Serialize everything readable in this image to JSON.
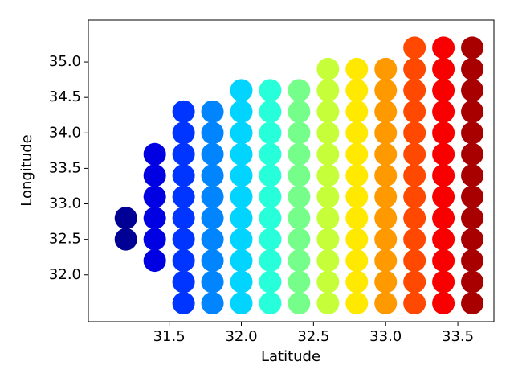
{
  "chart_data": {
    "type": "scatter",
    "x_label": "Latitude",
    "y_label": "Longitude",
    "colormap": "jet",
    "clim": [
      31.15,
      33.7
    ],
    "xlim": [
      30.94,
      33.75
    ],
    "xticks": [
      31.5,
      {
        "value": 32,
        "label": "32.0"
      },
      32.5,
      {
        "value": 33,
        "label": "33.0"
      },
      33.5
    ],
    "ylim": [
      31.34,
      35.59
    ],
    "yticks": [
      {
        "value": 32,
        "label": "32.0"
      },
      32.5,
      {
        "value": 33,
        "label": "33.0"
      },
      33.5,
      {
        "value": 34,
        "label": "34.0"
      },
      34.5,
      {
        "value": 35,
        "label": "35.0"
      }
    ],
    "x": [
      31.2,
      31.2,
      31.4,
      31.4,
      31.4,
      31.4,
      31.4,
      31.4,
      31.6,
      31.6,
      31.6,
      31.6,
      31.6,
      31.6,
      31.6,
      31.6,
      31.6,
      31.6,
      31.8,
      31.8,
      31.8,
      31.8,
      31.8,
      31.8,
      31.8,
      31.8,
      31.8,
      31.8,
      32.0,
      32.0,
      32.0,
      32.0,
      32.0,
      32.0,
      32.0,
      32.0,
      32.0,
      32.0,
      32.0,
      32.2,
      32.2,
      32.2,
      32.2,
      32.2,
      32.2,
      32.2,
      32.2,
      32.2,
      32.2,
      32.2,
      32.4,
      32.4,
      32.4,
      32.4,
      32.4,
      32.4,
      32.4,
      32.4,
      32.4,
      32.4,
      32.4,
      32.6,
      32.6,
      32.6,
      32.6,
      32.6,
      32.6,
      32.6,
      32.6,
      32.6,
      32.6,
      32.6,
      32.6,
      32.8,
      32.8,
      32.8,
      32.8,
      32.8,
      32.8,
      32.8,
      32.8,
      32.8,
      32.8,
      32.8,
      32.8,
      33.0,
      33.0,
      33.0,
      33.0,
      33.0,
      33.0,
      33.0,
      33.0,
      33.0,
      33.0,
      33.0,
      33.0,
      33.2,
      33.2,
      33.2,
      33.2,
      33.2,
      33.2,
      33.2,
      33.2,
      33.2,
      33.2,
      33.2,
      33.2,
      33.2,
      33.4,
      33.4,
      33.4,
      33.4,
      33.4,
      33.4,
      33.4,
      33.4,
      33.4,
      33.4,
      33.4,
      33.4,
      33.4,
      33.6,
      33.6,
      33.6,
      33.6,
      33.6,
      33.6,
      33.6,
      33.6,
      33.6,
      33.6,
      33.6,
      33.6,
      33.6
    ],
    "values": [
      32.5,
      32.8,
      32.2,
      32.5,
      32.8,
      33.1,
      33.4,
      33.7,
      31.6,
      31.9,
      32.2,
      32.5,
      32.8,
      33.1,
      33.4,
      33.7,
      34.0,
      34.3,
      31.6,
      31.9,
      32.2,
      32.5,
      32.8,
      33.1,
      33.4,
      33.7,
      34.0,
      34.3,
      31.6,
      31.9,
      32.2,
      32.5,
      32.8,
      33.1,
      33.4,
      33.7,
      34.0,
      34.3,
      34.6,
      31.6,
      31.9,
      32.2,
      32.5,
      32.8,
      33.1,
      33.4,
      33.7,
      34.0,
      34.3,
      34.6,
      31.6,
      31.9,
      32.2,
      32.5,
      32.8,
      33.1,
      33.4,
      33.7,
      34.0,
      34.3,
      34.6,
      31.6,
      31.9,
      32.2,
      32.5,
      32.8,
      33.1,
      33.4,
      33.7,
      34.0,
      34.3,
      34.6,
      34.9,
      31.6,
      31.9,
      32.2,
      32.5,
      32.8,
      33.1,
      33.4,
      33.7,
      34.0,
      34.3,
      34.6,
      34.9,
      31.6,
      31.9,
      32.2,
      32.5,
      32.8,
      33.1,
      33.4,
      33.7,
      34.0,
      34.3,
      34.6,
      34.9,
      31.6,
      31.9,
      32.2,
      32.5,
      32.8,
      33.1,
      33.4,
      33.7,
      34.0,
      34.3,
      34.6,
      34.9,
      35.2,
      31.6,
      31.9,
      32.2,
      32.5,
      32.8,
      33.1,
      33.4,
      33.7,
      34.0,
      34.3,
      34.6,
      34.9,
      35.2,
      31.6,
      31.9,
      32.2,
      32.5,
      32.8,
      33.1,
      33.4,
      33.7,
      34.0,
      34.3,
      34.6,
      34.9,
      35.2
    ]
  }
}
